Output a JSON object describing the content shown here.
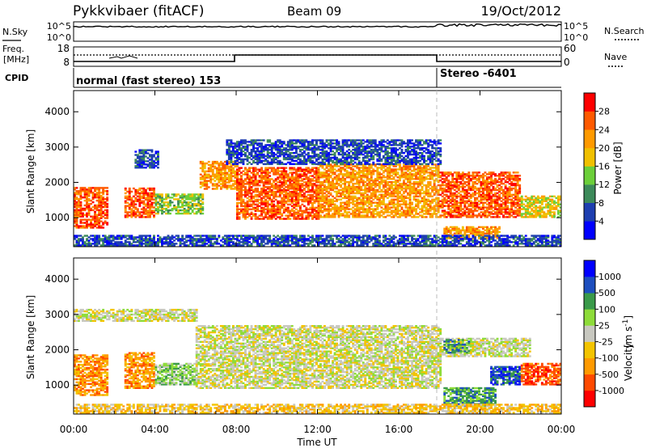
{
  "header": {
    "title": "Pykkvibaer (fitACF)",
    "beam": "Beam 09",
    "date": "19/Oct/2012"
  },
  "status_panels": {
    "nsky_label": "N.Sky",
    "nsky_ticks": [
      "10^5",
      "10^0"
    ],
    "nsearch_label": "N.Search",
    "nsearch_ticks": [
      "10^5",
      "10^0"
    ],
    "freq_label_1": "Freq.",
    "freq_label_2": "[MHz]",
    "freq_ticks": [
      "18",
      "8"
    ],
    "nave_label": "Nave",
    "nave_ticks": [
      "60",
      "0"
    ],
    "cpid_label": "CPID",
    "cpid_modes": [
      {
        "label": "normal (fast stereo) 153",
        "start_hour": 0
      },
      {
        "label": "Stereo -6401",
        "start_hour": 18
      }
    ]
  },
  "time_axis": {
    "ticks": [
      "00:00",
      "04:00",
      "08:00",
      "12:00",
      "16:00",
      "20:00",
      "00:00"
    ],
    "label": "Time UT"
  },
  "chart_data": [
    {
      "type": "heatmap",
      "name": "power",
      "x": "time UT (hours)",
      "xlim": [
        0,
        24
      ],
      "ylim": [
        180,
        4600
      ],
      "ylabel": "Slant Range [km]",
      "yticks": [
        "1000",
        "2000",
        "3000",
        "4000"
      ],
      "colorbar_label": "Power [dB]",
      "colorbar_ticks": [
        "28",
        "24",
        "20",
        "16",
        "12",
        "8",
        "4"
      ],
      "colors": [
        "#0000ff",
        "#1e3fb0",
        "#3d8a5a",
        "#6ccf3a",
        "#f0c000",
        "#ff9a00",
        "#ff5a00",
        "#ff0000"
      ],
      "echo_regions": [
        {
          "t0": 0.0,
          "t1": 1.7,
          "r0": 700,
          "r1": 1850,
          "level": 6
        },
        {
          "t0": 2.5,
          "t1": 4.0,
          "r0": 1000,
          "r1": 1850,
          "level": 6
        },
        {
          "t0": 4.0,
          "t1": 6.3,
          "r0": 1100,
          "r1": 1650,
          "level": 3
        },
        {
          "t0": 3.0,
          "t1": 4.2,
          "r0": 2400,
          "r1": 2900,
          "level": 1
        },
        {
          "t0": 6.2,
          "t1": 8.0,
          "r0": 1800,
          "r1": 2600,
          "level": 5
        },
        {
          "t0": 8.0,
          "t1": 12.0,
          "r0": 950,
          "r1": 2400,
          "level": 6
        },
        {
          "t0": 12.0,
          "t1": 18.0,
          "r0": 1000,
          "r1": 2500,
          "level": 5
        },
        {
          "t0": 7.5,
          "t1": 18.0,
          "r0": 2500,
          "r1": 3200,
          "level": 1
        },
        {
          "t0": 18.0,
          "t1": 22.0,
          "r0": 1000,
          "r1": 2300,
          "level": 6
        },
        {
          "t0": 22.0,
          "t1": 24.0,
          "r0": 1000,
          "r1": 1600,
          "level": 4
        },
        {
          "t0": 18.2,
          "t1": 21.0,
          "r0": 400,
          "r1": 750,
          "level": 5
        },
        {
          "t0": 0.0,
          "t1": 24.0,
          "r0": 200,
          "r1": 500,
          "level": 1
        }
      ]
    },
    {
      "type": "heatmap",
      "name": "velocity",
      "x": "time UT (hours)",
      "xlim": [
        0,
        24
      ],
      "ylim": [
        180,
        4600
      ],
      "ylabel": "Slant Range [km]",
      "yticks": [
        "1000",
        "2000",
        "3000",
        "4000"
      ],
      "colorbar_label": "Velocity",
      "colorbar_units": "[m s",
      "colorbar_units_sup": "-1",
      "colorbar_units_end": "]",
      "colorbar_ticks": [
        "1000",
        "500",
        "100",
        "25",
        "-25",
        "-100",
        "-500",
        "-1000"
      ],
      "colors": [
        "#ff0000",
        "#ff4a00",
        "#ff9a00",
        "#f3c400",
        "#c8c8c0",
        "#8edc3a",
        "#3a9a4a",
        "#1e4fbf",
        "#0000ff"
      ],
      "echo_regions": [
        {
          "t0": 0.0,
          "t1": 1.7,
          "r0": 700,
          "r1": 1850,
          "level": 2
        },
        {
          "t0": 2.5,
          "t1": 4.0,
          "r0": 900,
          "r1": 1900,
          "level": 2
        },
        {
          "t0": 4.0,
          "t1": 6.0,
          "r0": 1000,
          "r1": 1600,
          "level": 5
        },
        {
          "t0": 0.0,
          "t1": 6.0,
          "r0": 2800,
          "r1": 3150,
          "level": 4
        },
        {
          "t0": 6.0,
          "t1": 18.0,
          "r0": 900,
          "r1": 2700,
          "level": 4
        },
        {
          "t0": 18.0,
          "t1": 22.5,
          "r0": 1800,
          "r1": 2300,
          "level": 4
        },
        {
          "t0": 18.2,
          "t1": 19.5,
          "r0": 1900,
          "r1": 2300,
          "level": 6
        },
        {
          "t0": 20.5,
          "t1": 22.0,
          "r0": 1000,
          "r1": 1500,
          "level": 7
        },
        {
          "t0": 22.0,
          "t1": 24.0,
          "r0": 1000,
          "r1": 1600,
          "level": 1
        },
        {
          "t0": 18.2,
          "t1": 20.8,
          "r0": 400,
          "r1": 900,
          "level": 6
        },
        {
          "t0": 0.0,
          "t1": 24.0,
          "r0": 200,
          "r1": 450,
          "level": 3
        }
      ]
    }
  ]
}
